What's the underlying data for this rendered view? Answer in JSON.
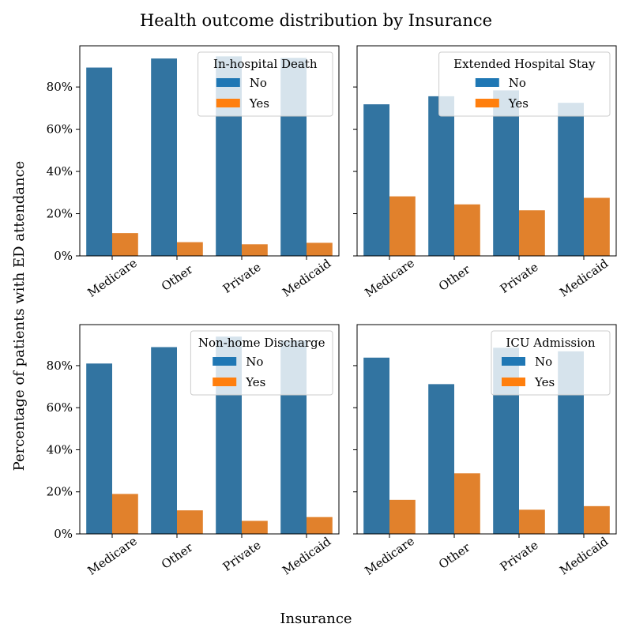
{
  "title": "Health outcome distribution by Insurance",
  "xlabel": "Insurance",
  "ylabel": "Percentage of patients with ED attendance",
  "colors": {
    "No": "#3274a1",
    "Yes": "#e1812c",
    "legend_No": "#1f77b4",
    "legend_Yes": "#ff7f0e"
  },
  "chart_data": [
    {
      "type": "bar",
      "legend_title": "In-hospital Death",
      "categories": [
        "Medicare",
        "Other",
        "Private",
        "Medicaid"
      ],
      "series": [
        {
          "name": "No",
          "values": [
            89.2,
            93.5,
            94.5,
            93.8
          ]
        },
        {
          "name": "Yes",
          "values": [
            10.8,
            6.5,
            5.5,
            6.2
          ]
        }
      ],
      "ylim": [
        0,
        100
      ],
      "yticks": [
        "0%",
        "20%",
        "40%",
        "60%",
        "80%"
      ]
    },
    {
      "type": "bar",
      "legend_title": "Extended Hospital Stay",
      "categories": [
        "Medicare",
        "Other",
        "Private",
        "Medicaid"
      ],
      "series": [
        {
          "name": "No",
          "values": [
            71.8,
            75.6,
            78.4,
            72.5
          ]
        },
        {
          "name": "Yes",
          "values": [
            28.2,
            24.4,
            21.6,
            27.5
          ]
        }
      ],
      "ylim": [
        0,
        100
      ],
      "yticks": [
        "0%",
        "20%",
        "40%",
        "60%",
        "80%"
      ]
    },
    {
      "type": "bar",
      "legend_title": "Non-home Discharge",
      "categories": [
        "Medicare",
        "Other",
        "Private",
        "Medicaid"
      ],
      "series": [
        {
          "name": "No",
          "values": [
            81.0,
            88.8,
            93.8,
            92.0
          ]
        },
        {
          "name": "Yes",
          "values": [
            19.0,
            11.2,
            6.2,
            8.0
          ]
        }
      ],
      "ylim": [
        0,
        100
      ],
      "yticks": [
        "0%",
        "20%",
        "40%",
        "60%",
        "80%"
      ]
    },
    {
      "type": "bar",
      "legend_title": "ICU Admission",
      "categories": [
        "Medicare",
        "Other",
        "Private",
        "Medicaid"
      ],
      "series": [
        {
          "name": "No",
          "values": [
            83.8,
            71.2,
            88.5,
            86.8
          ]
        },
        {
          "name": "Yes",
          "values": [
            16.2,
            28.8,
            11.5,
            13.2
          ]
        }
      ],
      "ylim": [
        0,
        100
      ],
      "yticks": [
        "0%",
        "20%",
        "40%",
        "60%",
        "80%"
      ]
    }
  ]
}
